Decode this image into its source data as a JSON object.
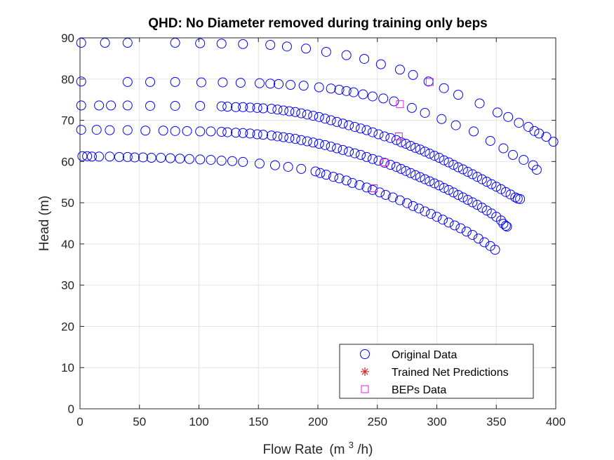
{
  "chart_data": {
    "type": "scatter",
    "title": "QHD: No Diameter removed during training only beps",
    "xlabel": "Flow Rate",
    "xlabel_unit_prefix": "(m",
    "xlabel_unit_sup": "3",
    "xlabel_unit_suffix": "/h)",
    "ylabel": "Head (m)",
    "xlim": [
      0,
      400
    ],
    "ylim": [
      0,
      90
    ],
    "xticks": [
      0,
      50,
      100,
      150,
      200,
      250,
      300,
      350,
      400
    ],
    "yticks": [
      0,
      10,
      20,
      30,
      40,
      50,
      60,
      70,
      80,
      90
    ],
    "grid": true,
    "legend_position": "bottom-right",
    "colors": {
      "original": "#0000ff",
      "predictions": "#d62728",
      "beps": "#e020e0",
      "axis": "#262626",
      "grid": "#e3e3e3"
    },
    "legend": [
      {
        "label": "Original Data",
        "marker": "circle",
        "color": "#0000ff"
      },
      {
        "label": "Trained Net Predictions",
        "marker": "asterisk",
        "color": "#d62728"
      },
      {
        "label": "BEPs Data",
        "marker": "square",
        "color": "#e020e0"
      }
    ],
    "series": [
      {
        "name": "Original Data",
        "marker": "circle",
        "curves": [
          {
            "x": [
              1,
              21,
              40,
              80,
              101,
              119,
              137,
              160,
              174,
              190,
              207,
              224,
              239,
              253,
              269,
              280,
              293,
              306,
              318,
              336,
              351,
              360,
              369,
              377,
              382,
              386,
              392,
              398
            ],
            "y": [
              88.8,
              88.8,
              88.8,
              88.8,
              88.7,
              88.6,
              88.5,
              88.3,
              87.9,
              87.4,
              86.6,
              85.8,
              84.9,
              83.6,
              82.3,
              81.0,
              79.4,
              77.8,
              76.2,
              74.1,
              71.9,
              70.8,
              69.4,
              68.4,
              67.4,
              66.8,
              66.0,
              64.8
            ]
          },
          {
            "x": [
              1,
              40,
              59,
              80,
              102,
              120,
              135,
              151,
              160,
              167,
              177,
              188,
              201,
              211,
              218,
              224,
              230,
              238,
              246,
              255,
              264,
              279,
              290,
              304,
              316,
              331,
              345,
              356,
              364,
              373,
              381,
              384
            ],
            "y": [
              79.4,
              79.3,
              79.3,
              79.3,
              79.2,
              79.2,
              79.1,
              79.0,
              78.9,
              78.8,
              78.6,
              78.4,
              78.0,
              77.7,
              77.4,
              77.1,
              76.8,
              76.3,
              75.8,
              75.3,
              74.6,
              73.0,
              71.8,
              70.3,
              68.8,
              67.3,
              65.0,
              63.2,
              61.6,
              60.4,
              59.1,
              58.0
            ]
          },
          {
            "x": [
              1,
              16,
              26,
              40,
              59,
              80,
              101,
              119,
              124,
              131,
              137,
              143,
              149,
              154,
              161,
              166,
              171,
              176,
              181,
              186,
              191,
              196,
              201,
              206,
              211,
              216,
              221,
              226,
              231,
              236,
              241,
              246,
              251,
              256,
              261,
              266,
              270,
              274,
              278,
              282,
              286,
              290,
              294,
              298,
              302,
              306,
              310,
              314,
              318,
              322,
              326,
              330,
              334,
              338,
              342,
              346,
              350,
              354,
              358,
              362,
              366,
              368,
              370
            ],
            "y": [
              73.6,
              73.6,
              73.6,
              73.6,
              73.5,
              73.5,
              73.5,
              73.4,
              73.3,
              73.2,
              73.2,
              73.1,
              73.0,
              72.9,
              72.8,
              72.6,
              72.4,
              72.2,
              72.0,
              71.7,
              71.4,
              71.1,
              70.8,
              70.4,
              70.0,
              69.6,
              69.2,
              68.8,
              68.4,
              68.0,
              67.6,
              67.1,
              66.6,
              66.1,
              65.7,
              65.2,
              64.7,
              64.3,
              63.8,
              63.3,
              62.9,
              62.4,
              61.9,
              61.4,
              60.9,
              60.3,
              59.8,
              59.2,
              58.6,
              58.1,
              57.5,
              56.9,
              56.3,
              55.7,
              55.1,
              54.5,
              53.9,
              53.3,
              52.6,
              52.0,
              51.3,
              51.0,
              50.9
            ]
          },
          {
            "x": [
              1,
              14,
              25,
              40,
              55,
              70,
              80,
              90,
              101,
              110,
              119,
              124,
              131,
              137,
              143,
              149,
              154,
              161,
              166,
              171,
              176,
              181,
              186,
              191,
              196,
              201,
              206,
              211,
              216,
              221,
              226,
              231,
              236,
              241,
              246,
              251,
              256,
              261,
              266,
              270,
              274,
              278,
              282,
              286,
              290,
              294,
              298,
              302,
              306,
              310,
              314,
              318,
              322,
              326,
              330,
              334,
              338,
              342,
              346,
              350,
              354,
              356,
              358,
              359
            ],
            "y": [
              67.7,
              67.7,
              67.6,
              67.6,
              67.5,
              67.5,
              67.4,
              67.4,
              67.3,
              67.3,
              67.2,
              67.1,
              67.0,
              66.9,
              66.8,
              66.6,
              66.5,
              66.3,
              66.1,
              65.9,
              65.7,
              65.5,
              65.2,
              64.9,
              64.6,
              64.3,
              64.0,
              63.6,
              63.2,
              62.8,
              62.4,
              62.0,
              61.6,
              61.1,
              60.6,
              60.2,
              59.7,
              59.2,
              58.7,
              58.2,
              57.7,
              57.2,
              56.7,
              56.2,
              55.7,
              55.2,
              54.7,
              54.2,
              53.6,
              53.1,
              52.5,
              51.9,
              51.3,
              50.7,
              50.1,
              49.5,
              48.8,
              48.1,
              47.4,
              46.6,
              45.7,
              44.9,
              44.4,
              44.2
            ]
          },
          {
            "x": [
              2,
              6,
              10,
              16,
              25,
              33,
              40,
              46,
              53,
              60,
              68,
              76,
              84,
              92,
              101,
              110,
              119,
              128,
              137,
              151,
              164,
              175,
              186,
              198,
              202,
              207,
              213,
              218,
              224,
              229,
              235,
              241,
              246,
              252,
              257,
              263,
              269,
              275,
              280,
              285,
              290,
              295,
              300,
              305,
              310,
              315,
              320,
              325,
              330,
              335,
              340,
              345,
              349
            ],
            "y": [
              61.3,
              61.3,
              61.2,
              61.2,
              61.2,
              61.1,
              61.1,
              61.0,
              61.0,
              60.9,
              60.9,
              60.8,
              60.7,
              60.6,
              60.5,
              60.4,
              60.2,
              60.1,
              59.9,
              59.5,
              59.1,
              58.7,
              58.2,
              57.6,
              57.2,
              56.8,
              56.3,
              55.9,
              55.4,
              54.8,
              54.3,
              53.7,
              53.1,
              52.5,
              51.9,
              51.3,
              50.6,
              49.9,
              49.2,
              48.6,
              47.9,
              47.3,
              46.6,
              45.9,
              45.2,
              44.5,
              43.8,
              43.0,
              42.2,
              41.3,
              40.4,
              39.5,
              38.6
            ]
          }
        ]
      },
      {
        "name": "Trained Net Predictions",
        "marker": "asterisk",
        "x": [],
        "y": []
      },
      {
        "name": "BEPs Data",
        "marker": "square",
        "x": [
          294,
          269,
          268,
          256,
          247
        ],
        "y": [
          79.3,
          73.9,
          66.1,
          59.8,
          53.5
        ]
      }
    ]
  }
}
